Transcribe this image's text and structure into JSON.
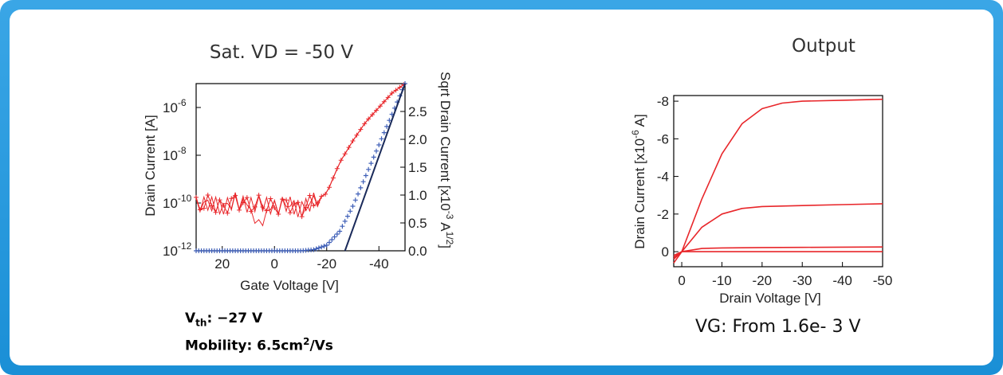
{
  "colors": {
    "frame": "#2a9be0",
    "red": "#e8262a",
    "blue": "#4060b8",
    "dark": "#1a2a5a"
  },
  "left_note": {
    "vth_main": "V",
    "vth_sub": "th",
    "vth_value": ": −27 V",
    "mobility_pre": "Mobility: 6.5cm",
    "mobility_sup": "2",
    "mobility_post": "/Vs"
  },
  "right_note": "VG: From  1.6e- 3 V",
  "chart_data": [
    {
      "type": "scatter",
      "title": "Sat. VD = -50 V",
      "xlabel": "Gate Voltage [V]",
      "ylabel_left": "Drain Current [A]",
      "ylabel_right": "Sqrt Drain Current [x10",
      "ylabel_right_exp": "-3",
      "ylabel_right_unit": " A",
      "ylabel_right_unit_exp": "1/2",
      "ylabel_right_close": "]",
      "xlim": [
        30,
        -50
      ],
      "xticks": [
        20,
        0,
        -20,
        -40
      ],
      "ylim_left_log10": [
        -12,
        -5
      ],
      "yticks_left": [
        {
          "exp": -12,
          "base": "10",
          "sup": "-12"
        },
        {
          "exp": -10,
          "base": "10",
          "sup": "-10"
        },
        {
          "exp": -8,
          "base": "10",
          "sup": "-8"
        },
        {
          "exp": -6,
          "base": "10",
          "sup": "-6"
        }
      ],
      "ylim_right": [
        0,
        3
      ],
      "yticks_right": [
        "0.0",
        "0.5",
        "1.0",
        "1.5",
        "2.0",
        "2.5"
      ],
      "series": [
        {
          "axis": "left-log",
          "x": [
            30,
            25,
            20,
            15,
            10,
            5,
            0,
            -5,
            -10,
            -15,
            -20,
            -25,
            -30,
            -35,
            -40,
            -45,
            -50
          ],
          "log10_y": [
            -10.1,
            -10.0,
            -10.2,
            -9.9,
            -10.1,
            -10.0,
            -10.2,
            -10.0,
            -10.3,
            -9.9,
            -9.6,
            -8.3,
            -7.4,
            -6.6,
            -6.0,
            -5.4,
            -5.0
          ]
        },
        {
          "axis": "right",
          "x": [
            30,
            20,
            10,
            0,
            -10,
            -15,
            -20,
            -25,
            -30,
            -35,
            -40,
            -45,
            -50
          ],
          "y": [
            0,
            0,
            0,
            0,
            0,
            0.02,
            0.1,
            0.35,
            0.8,
            1.35,
            1.9,
            2.45,
            3.0
          ]
        }
      ]
    },
    {
      "type": "line",
      "title": "Output",
      "xlabel": "Drain Voltage [V]",
      "ylabel": "Drain Current [x10",
      "ylabel_exp": "-6",
      "ylabel_unit": " A]",
      "xlim": [
        2,
        -50
      ],
      "xticks": [
        "0",
        "-10",
        "-20",
        "-30",
        "-40",
        "-50"
      ],
      "ylim": [
        0.8,
        -8.3
      ],
      "yticks": [
        "0",
        "-2",
        "-4",
        "-6",
        "-8"
      ],
      "series": [
        {
          "x": [
            2,
            0,
            -5,
            -10,
            -15,
            -20,
            -25,
            -30,
            -40,
            -50
          ],
          "y": [
            0.6,
            0.0,
            -2.8,
            -5.2,
            -6.8,
            -7.6,
            -7.9,
            -8.0,
            -8.05,
            -8.1
          ]
        },
        {
          "x": [
            2,
            0,
            -5,
            -10,
            -15,
            -20,
            -30,
            -40,
            -50
          ],
          "y": [
            0.4,
            0.0,
            -1.3,
            -2.0,
            -2.3,
            -2.4,
            -2.45,
            -2.5,
            -2.55
          ]
        },
        {
          "x": [
            2,
            0,
            -5,
            -10,
            -20,
            -30,
            -40,
            -50
          ],
          "y": [
            0.3,
            0.0,
            -0.17,
            -0.2,
            -0.22,
            -0.23,
            -0.24,
            -0.25
          ]
        },
        {
          "x": [
            2,
            0,
            -10,
            -20,
            -30,
            -40,
            -50
          ],
          "y": [
            0.2,
            0.0,
            0.0,
            0.0,
            0.0,
            0.0,
            0.0
          ]
        }
      ]
    }
  ]
}
